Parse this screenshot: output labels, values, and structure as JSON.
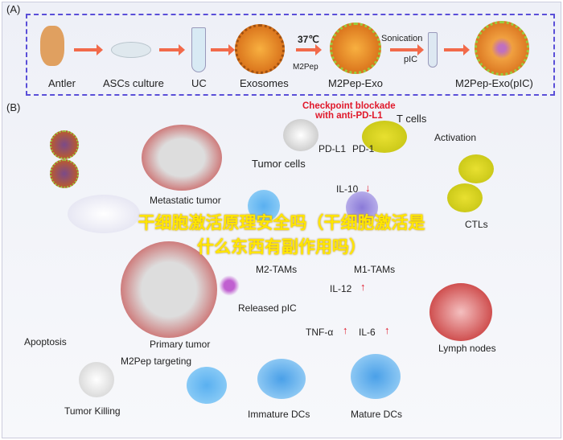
{
  "panel_a": {
    "label": "(A)",
    "steps": [
      "Antler",
      "ASCs culture",
      "UC",
      "Exosomes",
      "M2Pep-Exo",
      "M2Pep-Exo(pIC)"
    ],
    "condition_temp": "37℃",
    "peptide": "M2Pep",
    "sonication": "Sonication",
    "cargo": "pIC"
  },
  "panel_b": {
    "label": "(B)",
    "checkpoint_line1": "Checkpoint blockade",
    "checkpoint_line2": "with anti-PD-L1",
    "t_cells": "T cells",
    "pd_l1": "PD-L1",
    "pd_1": "PD-1",
    "tumor_cells": "Tumor cells",
    "metastatic_tumor": "Metastatic tumor",
    "il10": "IL-10",
    "m2_tams": "M2-TAMs",
    "m1_tams": "M1-TAMs",
    "activation": "Activation",
    "ctls": "CTLs",
    "il12": "IL-12",
    "released_pic": "Released pIC",
    "tnfa": "TNF-α",
    "il6": "IL-6",
    "lymph_nodes": "Lymph nodes",
    "apoptosis": "Apoptosis",
    "primary_tumor": "Primary tumor",
    "m2pep_targeting": "M2Pep targeting",
    "tumor_killing": "Tumor Killing",
    "immature_dcs": "Immature DCs",
    "mature_dcs": "Mature DCs"
  },
  "overlay_title": "干细胞激活原理安全吗（干细胞激活是什么东西有副作用吗）",
  "colors": {
    "dash_border": "#5a4fd8",
    "arrow": "#f26a4a",
    "checkpoint": "#e0182a",
    "overlay": "#ffe600"
  }
}
